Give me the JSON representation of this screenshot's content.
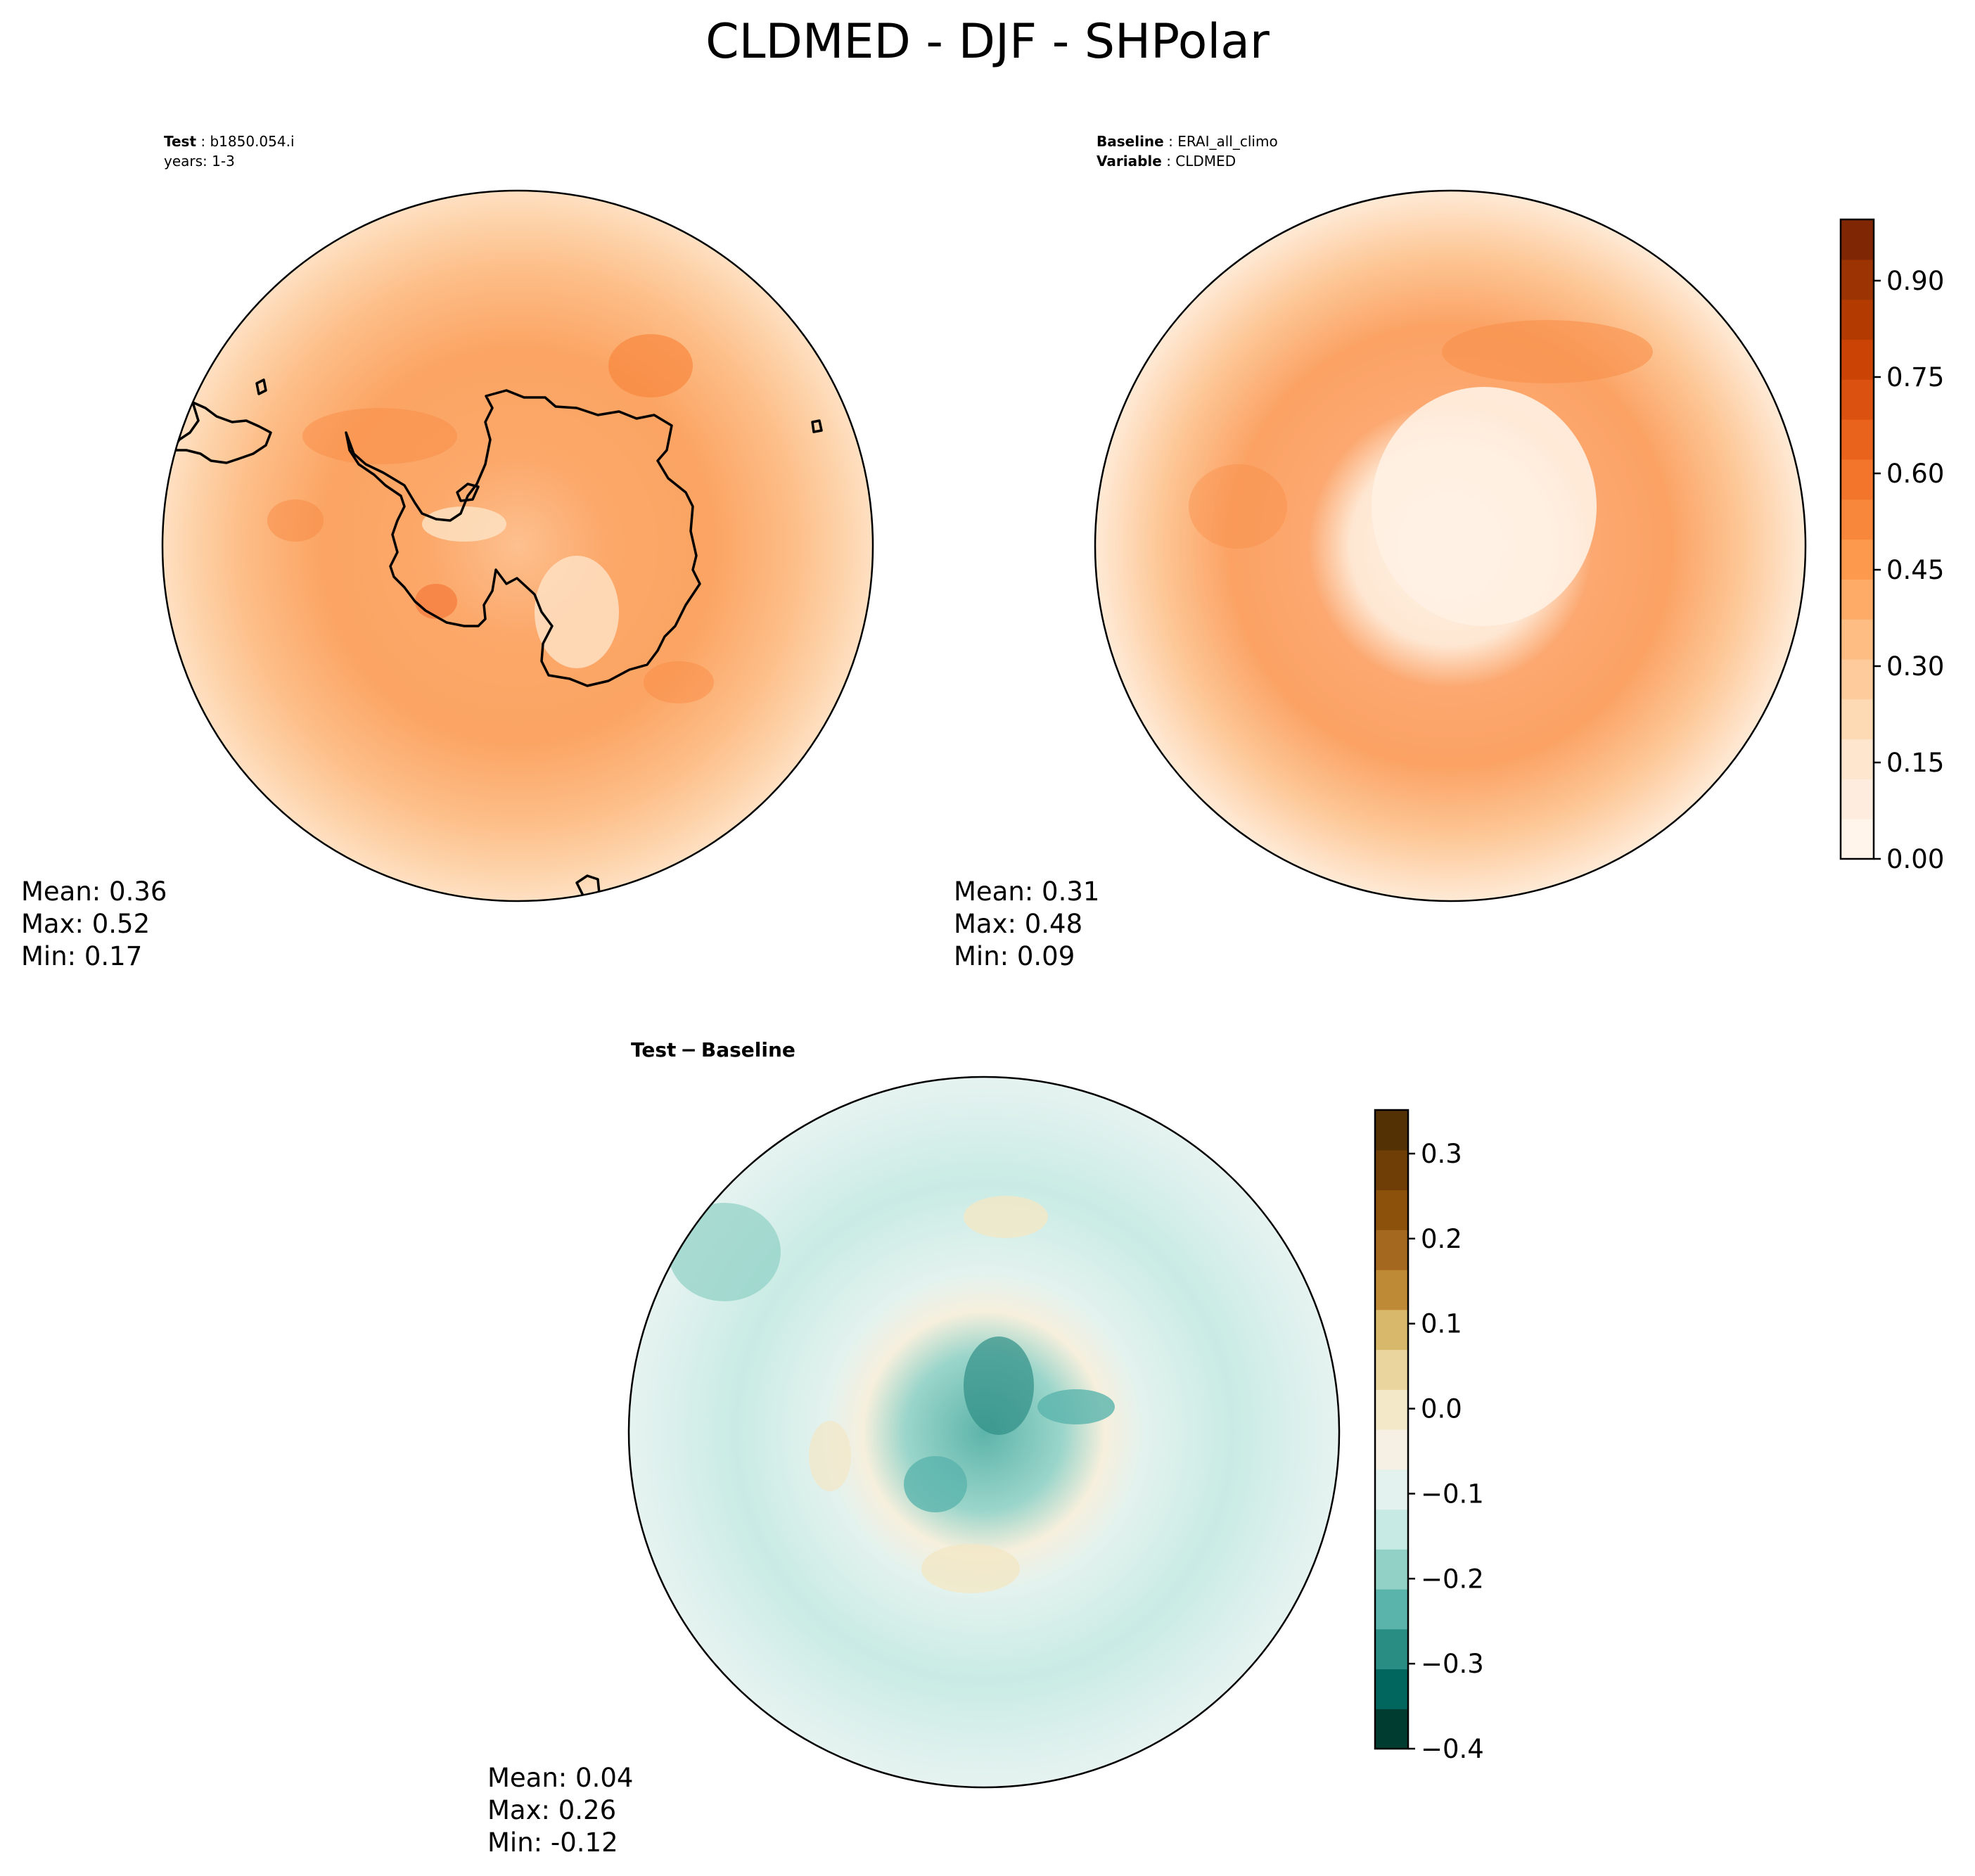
{
  "figure": {
    "title": "CLDMED - DJF - SHPolar"
  },
  "test_panel": {
    "label_key": "Test",
    "label_value": "b1850.054.i",
    "years": "years: 1-3",
    "stats": {
      "mean": "Mean:  0.36",
      "max": "Max:  0.52",
      "min": "Min:  0.17"
    }
  },
  "baseline_panel": {
    "label_key": "Baseline",
    "label_value": "ERAI_all_climo",
    "variable_key": "Variable",
    "variable_value": "CLDMED",
    "stats": {
      "mean": "Mean:  0.31",
      "max": "Max:  0.48",
      "min": "Min:  0.09"
    }
  },
  "diff_panel": {
    "title_a": "Test",
    "title_sep": "−",
    "title_b": "Baseline",
    "stats": {
      "mean": "Mean:  0.04",
      "max": "Max:  0.26",
      "min": "Min: -0.12"
    }
  },
  "colorbar_main": {
    "ticks": [
      "0.00",
      "0.15",
      "0.30",
      "0.45",
      "0.60",
      "0.75",
      "0.90"
    ],
    "levels": [
      "#fff5eb",
      "#feedde",
      "#fee6ce",
      "#fdd9b4",
      "#fdcb9c",
      "#fdbd83",
      "#fdab67",
      "#fd994d",
      "#f8863b",
      "#f3752b",
      "#ea631d",
      "#db5110",
      "#cb4406",
      "#b33b02",
      "#9b3303",
      "#7f2704"
    ]
  },
  "colorbar_diff": {
    "ticks": [
      "0.3",
      "0.2",
      "0.1",
      "0.0",
      "−0.1",
      "−0.2",
      "−0.3",
      "−0.4"
    ],
    "levels": [
      "#003c30",
      "#01665e",
      "#2a8d84",
      "#5ab4ac",
      "#92d2c6",
      "#c7eae5",
      "#e4f2ef",
      "#f5f0e3",
      "#f3e8c8",
      "#e9d59d",
      "#d8b86a",
      "#bf8a36",
      "#a5681f",
      "#8c510a",
      "#6f3d06",
      "#543005"
    ]
  },
  "chart_data": [
    {
      "type": "heatmap",
      "title": "CLDMED - DJF - SHPolar",
      "panel": "Test",
      "mean": 0.36,
      "max": 0.52,
      "min": 0.17,
      "colorbar_range": [
        0.0,
        0.975
      ]
    },
    {
      "type": "heatmap",
      "panel": "Baseline",
      "mean": 0.31,
      "max": 0.48,
      "min": 0.09,
      "colorbar_range": [
        0.0,
        0.975
      ]
    },
    {
      "type": "heatmap",
      "panel": "Test - Baseline",
      "mean": 0.04,
      "max": 0.26,
      "min": -0.12,
      "colorbar_range": [
        -0.4,
        0.35
      ]
    }
  ]
}
